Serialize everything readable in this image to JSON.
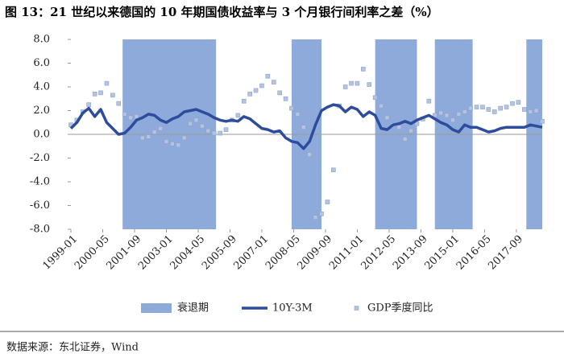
{
  "chart_data": {
    "type": "line",
    "title": "图 13：21 世纪以来德国的 10 年期国债收益率与 3 个月银行间利率之差（%）",
    "source": "数据来源：东北证券，Wind",
    "x": [
      "1999-01",
      "1999-04",
      "1999-07",
      "1999-10",
      "2000-01",
      "2000-04",
      "2000-07",
      "2000-10",
      "2001-01",
      "2001-04",
      "2001-07",
      "2001-10",
      "2002-01",
      "2002-04",
      "2002-07",
      "2002-10",
      "2003-01",
      "2003-04",
      "2003-07",
      "2003-10",
      "2004-01",
      "2004-04",
      "2004-07",
      "2004-10",
      "2005-01",
      "2005-04",
      "2005-07",
      "2005-10",
      "2006-01",
      "2006-04",
      "2006-07",
      "2006-10",
      "2007-01",
      "2007-04",
      "2007-07",
      "2007-10",
      "2008-01",
      "2008-04",
      "2008-07",
      "2008-10",
      "2009-01",
      "2009-04",
      "2009-07",
      "2009-10",
      "2010-01",
      "2010-04",
      "2010-07",
      "2010-10",
      "2011-01",
      "2011-04",
      "2011-07",
      "2011-10",
      "2012-01",
      "2012-04",
      "2012-07",
      "2012-10",
      "2013-01",
      "2013-04",
      "2013-07",
      "2013-10",
      "2014-01",
      "2014-04",
      "2014-07",
      "2014-10",
      "2015-01",
      "2015-04",
      "2015-07",
      "2015-10",
      "2016-01",
      "2016-04",
      "2016-07",
      "2016-10",
      "2017-01",
      "2017-04",
      "2017-07",
      "2017-10",
      "2018-01",
      "2018-04",
      "2018-07",
      "2018-10"
    ],
    "xlim": [
      "1999-01",
      "2018-10"
    ],
    "xticks": [
      "1999-01",
      "2000-05",
      "2001-09",
      "2003-01",
      "2004-05",
      "2005-09",
      "2007-01",
      "2008-05",
      "2009-09",
      "2011-01",
      "2012-05",
      "2013-09",
      "2015-01",
      "2016-05",
      "2017-09"
    ],
    "ylim": [
      -8,
      8
    ],
    "yticks": [
      {
        "value": 8,
        "label": "8.0"
      },
      {
        "value": 6,
        "label": "6.0"
      },
      {
        "value": 4,
        "label": "4.0"
      },
      {
        "value": 2,
        "label": "2.0"
      },
      {
        "value": 0,
        "label": "0.0"
      },
      {
        "value": -2,
        "label": "-2.0"
      },
      {
        "value": -4,
        "label": "-4.0"
      },
      {
        "value": -6,
        "label": "-6.0"
      },
      {
        "value": -8,
        "label": "-8.0"
      }
    ],
    "bands": {
      "name": "衰退期",
      "color": "#8eaadb",
      "ranges": [
        [
          "2001-03",
          "2005-02"
        ],
        [
          "2008-04",
          "2009-07"
        ],
        [
          "2011-10",
          "2013-07"
        ],
        [
          "2014-04",
          "2015-11"
        ],
        [
          "2018-02",
          "2018-10"
        ]
      ]
    },
    "series": [
      {
        "name": "10Y-3M",
        "color": "#2e4c9c",
        "style": "line",
        "values": [
          0.5,
          1.0,
          1.8,
          2.2,
          1.5,
          2.1,
          1.0,
          0.5,
          0.0,
          0.1,
          0.6,
          1.2,
          1.4,
          1.7,
          1.6,
          1.2,
          1.0,
          1.3,
          1.5,
          1.9,
          2.0,
          2.1,
          1.9,
          1.7,
          1.4,
          1.2,
          1.1,
          1.2,
          1.1,
          1.5,
          1.3,
          0.9,
          0.5,
          0.4,
          0.2,
          0.3,
          -0.3,
          -0.6,
          -0.7,
          -1.2,
          -0.6,
          0.8,
          2.0,
          2.3,
          2.5,
          2.4,
          1.9,
          2.3,
          2.1,
          1.5,
          1.9,
          1.6,
          0.5,
          0.4,
          0.8,
          0.9,
          1.1,
          0.9,
          1.2,
          1.4,
          1.6,
          1.3,
          1.0,
          0.8,
          0.4,
          0.2,
          0.8,
          0.6,
          0.6,
          0.4,
          0.2,
          0.3,
          0.5,
          0.6,
          0.6,
          0.6,
          0.6,
          0.8,
          0.7,
          0.6
        ]
      },
      {
        "name": "GDP季度同比",
        "color": "#b4c3e0",
        "style": "marker",
        "values": [
          0.8,
          1.2,
          1.9,
          2.5,
          3.4,
          3.5,
          4.3,
          3.3,
          2.6,
          1.7,
          1.4,
          1.5,
          -0.3,
          -0.2,
          0.2,
          0.5,
          -0.6,
          -0.8,
          -0.9,
          -0.3,
          0.9,
          1.2,
          0.7,
          0.3,
          0.1,
          0.1,
          0.4,
          1.2,
          1.6,
          2.8,
          3.4,
          3.7,
          4.1,
          4.9,
          4.4,
          3.5,
          3.0,
          2.2,
          1.7,
          0.6,
          -1.7,
          -7.0,
          -6.7,
          -5.7,
          -3.0,
          2.4,
          4.0,
          4.3,
          4.3,
          5.5,
          4.2,
          3.1,
          2.4,
          1.4,
          0.8,
          0.6,
          -0.4,
          0.3,
          0.9,
          1.3,
          2.8,
          1.6,
          1.8,
          1.6,
          1.2,
          1.7,
          1.9,
          2.2,
          2.3,
          2.3,
          2.1,
          1.9,
          2.2,
          2.3,
          2.6,
          2.7,
          2.1,
          1.9,
          2.0,
          1.1
        ]
      }
    ]
  }
}
